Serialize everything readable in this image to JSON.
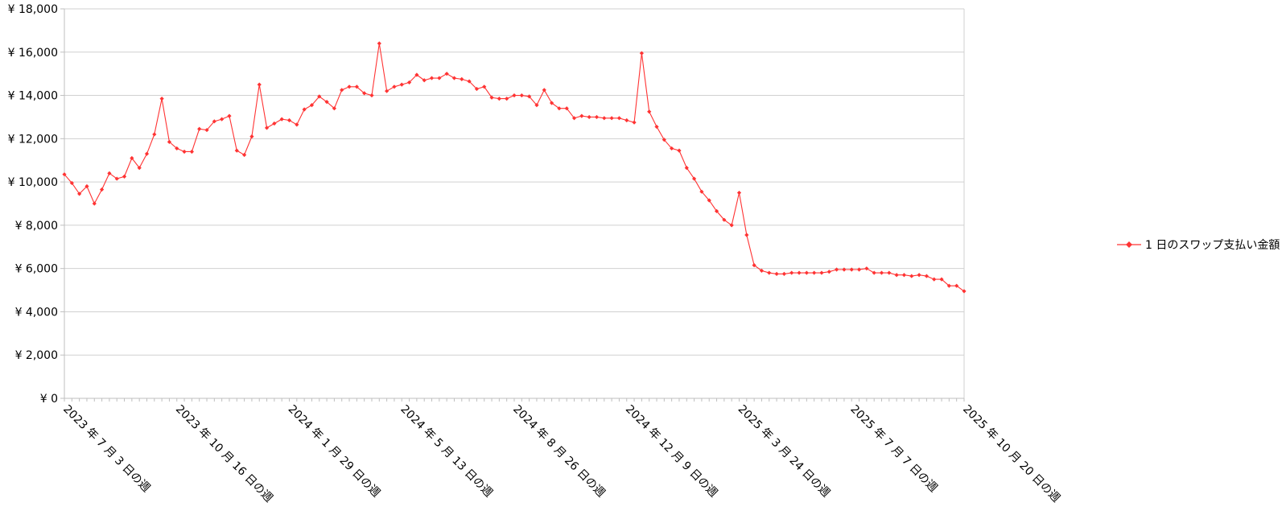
{
  "chart_data": {
    "type": "line",
    "title": "",
    "xlabel": "",
    "ylabel": "",
    "ylim": [
      0,
      18000
    ],
    "x_start": "2023-07-03",
    "x_interval": "weekly",
    "x_count": 121,
    "y_ticks": [
      {
        "value": 0,
        "label": "¥ 0"
      },
      {
        "value": 2000,
        "label": "¥ 2,000"
      },
      {
        "value": 4000,
        "label": "¥ 4,000"
      },
      {
        "value": 6000,
        "label": "¥ 6,000"
      },
      {
        "value": 8000,
        "label": "¥ 8,000"
      },
      {
        "value": 10000,
        "label": "¥ 10,000"
      },
      {
        "value": 12000,
        "label": "¥ 12,000"
      },
      {
        "value": 14000,
        "label": "¥ 14,000"
      },
      {
        "value": 16000,
        "label": "¥ 16,000"
      },
      {
        "value": 18000,
        "label": "¥ 18,000"
      }
    ],
    "x_ticks": [
      {
        "index": 0,
        "label": "2023 年 7 月 3 日の週"
      },
      {
        "index": 15,
        "label": "2023 年 10 月 16 日の週"
      },
      {
        "index": 30,
        "label": "2024 年 1 月 29 日の週"
      },
      {
        "index": 45,
        "label": "2024 年 5 月 13 日の週"
      },
      {
        "index": 60,
        "label": "2024 年 8 月 26 日の週"
      },
      {
        "index": 75,
        "label": "2024 年 12 月 9 日の週"
      },
      {
        "index": 90,
        "label": "2025 年 3 月 24 日の週"
      },
      {
        "index": 105,
        "label": "2025 年 7 月 7 日の週"
      },
      {
        "index": 120,
        "label": "2025 年 10 月 20 日の週"
      }
    ],
    "grid": true,
    "legend_position": "right",
    "series": [
      {
        "name": "1 日のスワップ支払い金額",
        "color": "#ff3333",
        "marker": "diamond",
        "values": [
          10350,
          9950,
          9450,
          9800,
          9000,
          9650,
          10400,
          10150,
          10250,
          11100,
          10650,
          11300,
          12200,
          13850,
          11850,
          11550,
          11400,
          11400,
          12450,
          12400,
          12800,
          12900,
          13050,
          11450,
          11250,
          12100,
          14500,
          12500,
          12700,
          12900,
          12850,
          12650,
          13350,
          13550,
          13950,
          13700,
          13400,
          14250,
          14400,
          14400,
          14100,
          14000,
          16400,
          14200,
          14400,
          14500,
          14600,
          14950,
          14700,
          14800,
          14800,
          15000,
          14800,
          14750,
          14650,
          14300,
          14400,
          13900,
          13850,
          13850,
          14000,
          14000,
          13950,
          13550,
          14250,
          13650,
          13400,
          13400,
          12950,
          13050,
          13000,
          13000,
          12950,
          12950,
          12950,
          12850,
          12750,
          15950,
          13250,
          12550,
          11950,
          11550,
          11450,
          10650,
          10150,
          9550,
          9150,
          8650,
          8250,
          8000,
          9500,
          7550,
          6150,
          5900,
          5800,
          5750,
          5750,
          5800,
          5800,
          5800,
          5800,
          5800,
          5850,
          5950,
          5950,
          5950,
          5950,
          6000,
          5800,
          5800,
          5800,
          5700,
          5700,
          5650,
          5700,
          5650,
          5500,
          5500,
          5200,
          5200,
          4950
        ]
      }
    ]
  }
}
